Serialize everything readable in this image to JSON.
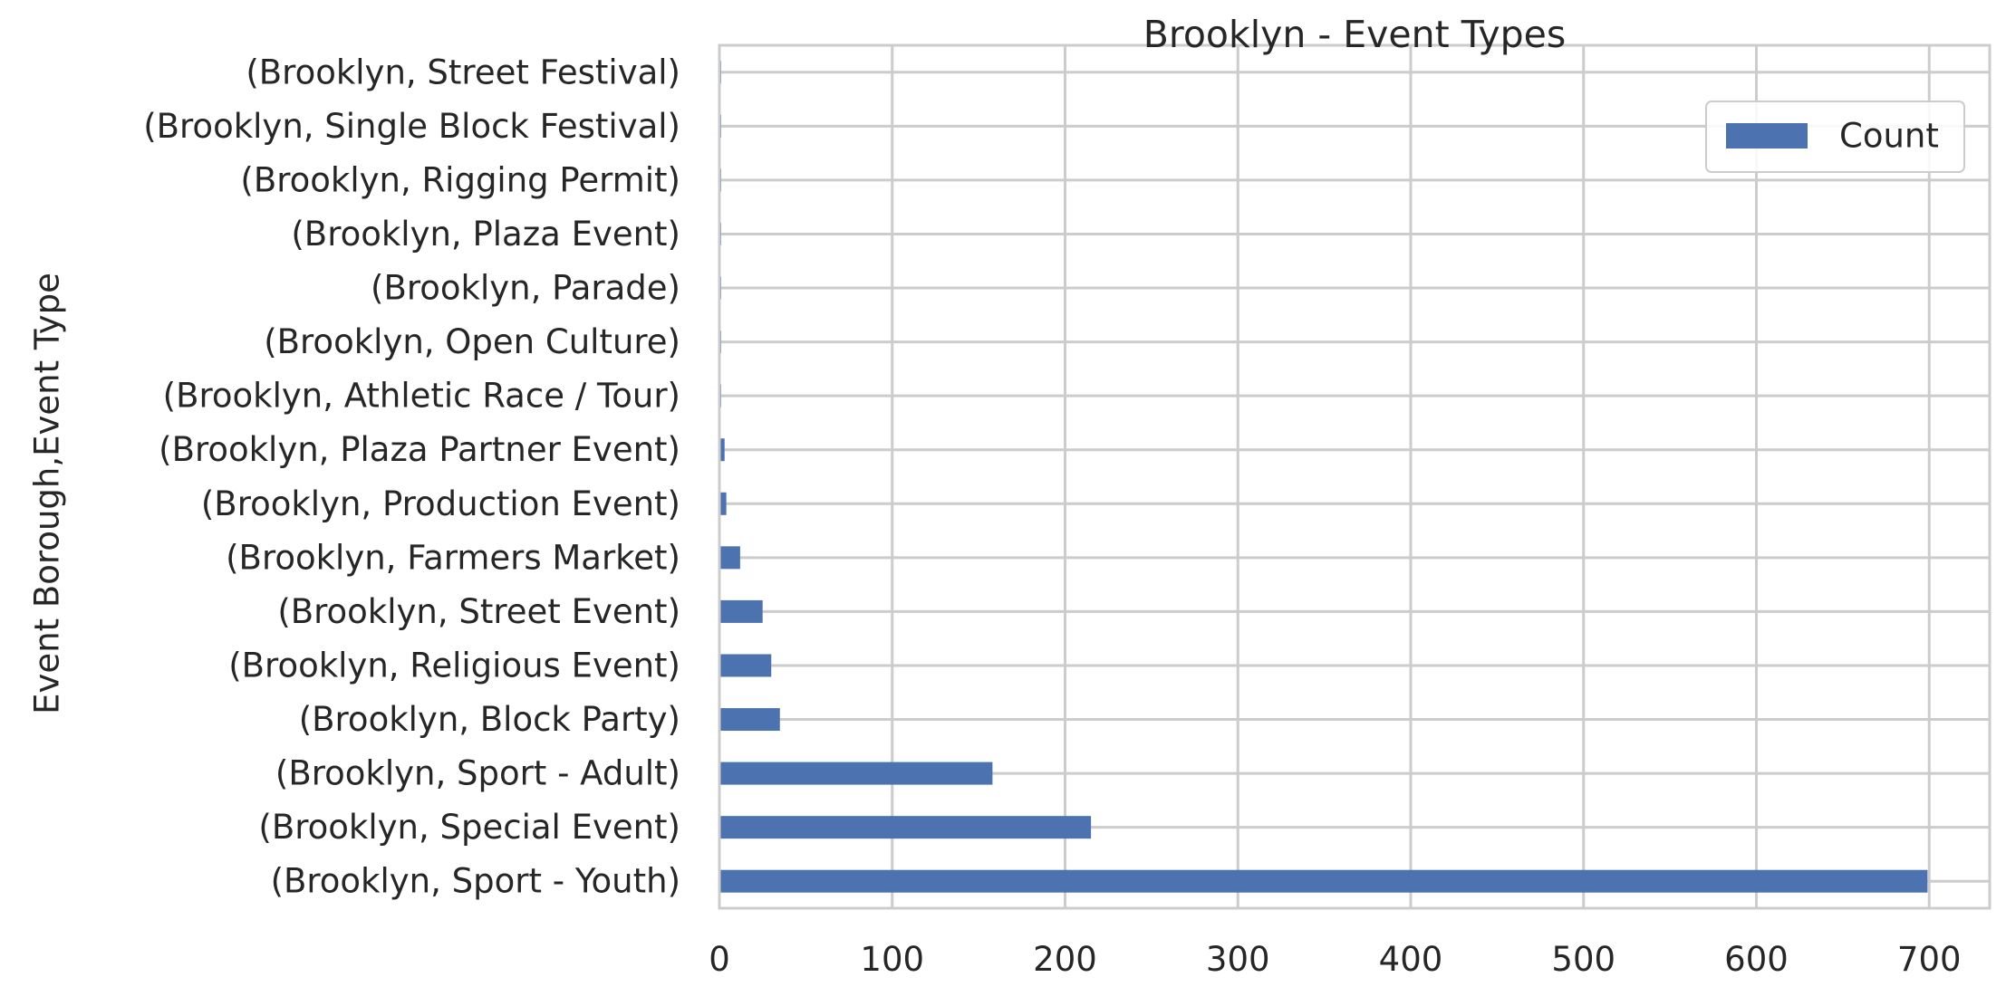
{
  "chart_data": {
    "type": "bar",
    "orientation": "horizontal",
    "title": "Brooklyn - Event Types",
    "ylabel": "Event Borough,Event Type",
    "xlabel": "",
    "categories": [
      "(Brooklyn, Sport - Youth)",
      "(Brooklyn, Special Event)",
      "(Brooklyn, Sport - Adult)",
      "(Brooklyn, Block Party)",
      "(Brooklyn, Religious Event)",
      "(Brooklyn, Street Event)",
      "(Brooklyn, Farmers Market)",
      "(Brooklyn, Production Event)",
      "(Brooklyn, Plaza Partner Event)",
      "(Brooklyn, Athletic Race / Tour)",
      "(Brooklyn, Open Culture)",
      "(Brooklyn, Parade)",
      "(Brooklyn, Plaza Event)",
      "(Brooklyn, Rigging Permit)",
      "(Brooklyn, Single Block Festival)",
      "(Brooklyn, Street Festival)"
    ],
    "series": [
      {
        "name": "Count",
        "color": "#4c72b0",
        "values": [
          699,
          215,
          158,
          35,
          30,
          25,
          12,
          4,
          3,
          1,
          1,
          1,
          1,
          1,
          1,
          1
        ]
      }
    ],
    "xlim": [
      0,
      735
    ],
    "xticks": [
      0,
      100,
      200,
      300,
      400,
      500,
      600,
      700
    ],
    "grid": true,
    "legend_position": "top-right",
    "colors": {
      "bar": "#4c72b0",
      "grid": "#cccccc",
      "text": "#262626"
    }
  }
}
